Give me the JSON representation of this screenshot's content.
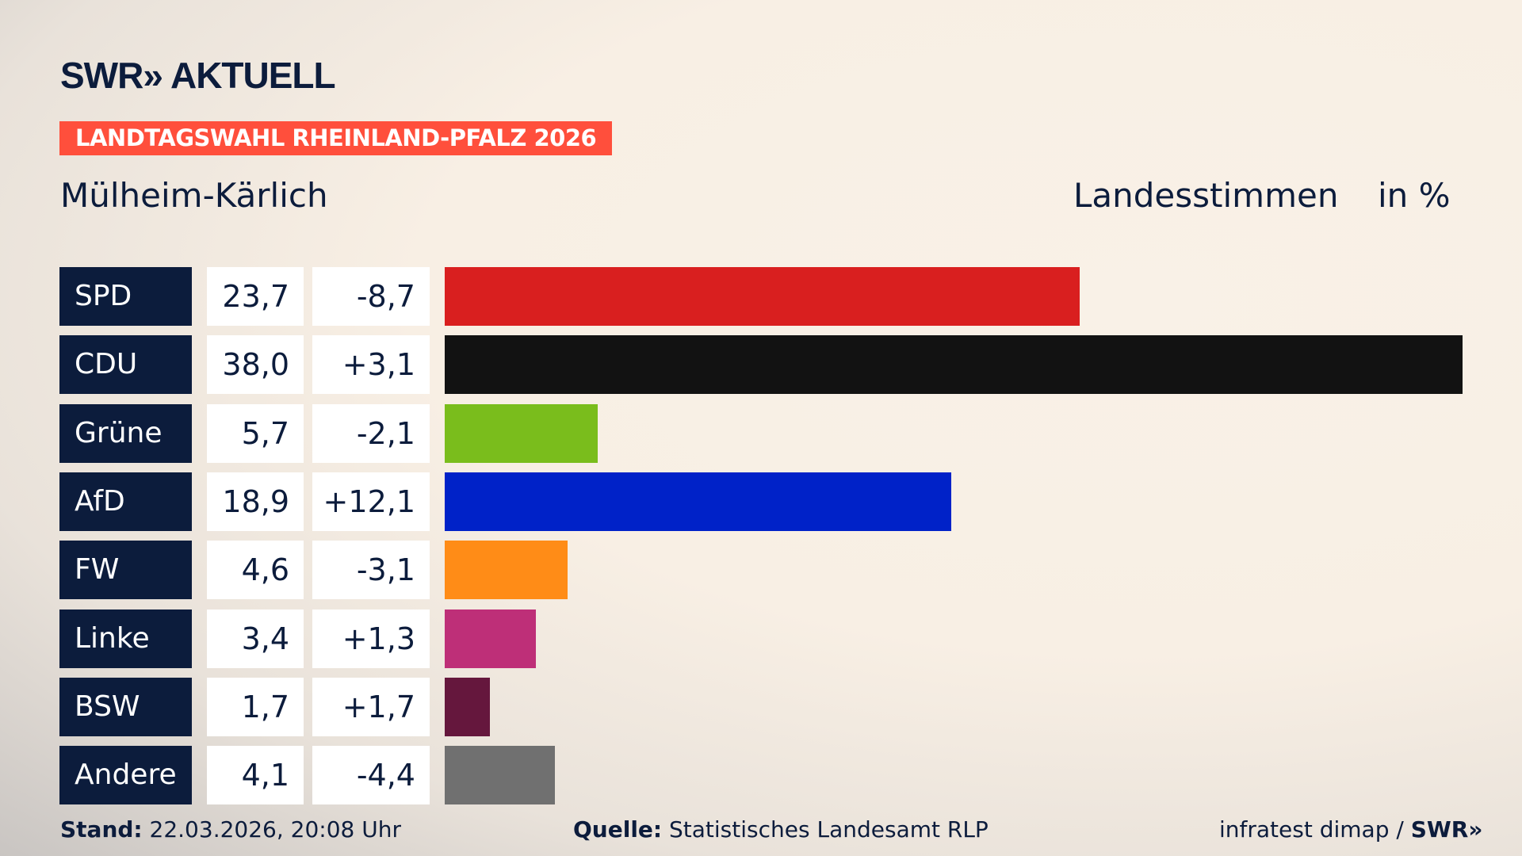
{
  "header": {
    "logo": "SWR» AKTUELL",
    "banner": "LANDTAGSWAHL RHEINLAND-PFALZ 2026",
    "location": "Mülheim-Kärlich",
    "metric": "Landesstimmen",
    "unit": "in %"
  },
  "chart_data": {
    "type": "bar",
    "orientation": "horizontal",
    "categories": [
      "SPD",
      "CDU",
      "Grüne",
      "AfD",
      "FW",
      "Linke",
      "BSW",
      "Andere"
    ],
    "values": [
      23.7,
      38.0,
      5.7,
      18.9,
      4.6,
      3.4,
      1.7,
      4.1
    ],
    "value_labels": [
      "23,7",
      "38,0",
      "5,7",
      "18,9",
      "4,6",
      "3,4",
      "1,7",
      "4,1"
    ],
    "diff_labels": [
      "-8,7",
      "+3,1",
      "-2,1",
      "+12,1",
      "-3,1",
      "+1,3",
      "+1,7",
      "-4,4"
    ],
    "colors": [
      "#d91f1f",
      "#121212",
      "#7abd1c",
      "#0022c8",
      "#ff8c17",
      "#be2f78",
      "#65173d",
      "#707070"
    ],
    "xlim": [
      0,
      38.0
    ]
  },
  "footer": {
    "stand_label": "Stand:",
    "stand": "22.03.2026, 20:08 Uhr",
    "source_label": "Quelle:",
    "source": "Statistisches Landesamt RLP",
    "credit": "infratest dimap /",
    "credit_logo": "SWR»"
  }
}
